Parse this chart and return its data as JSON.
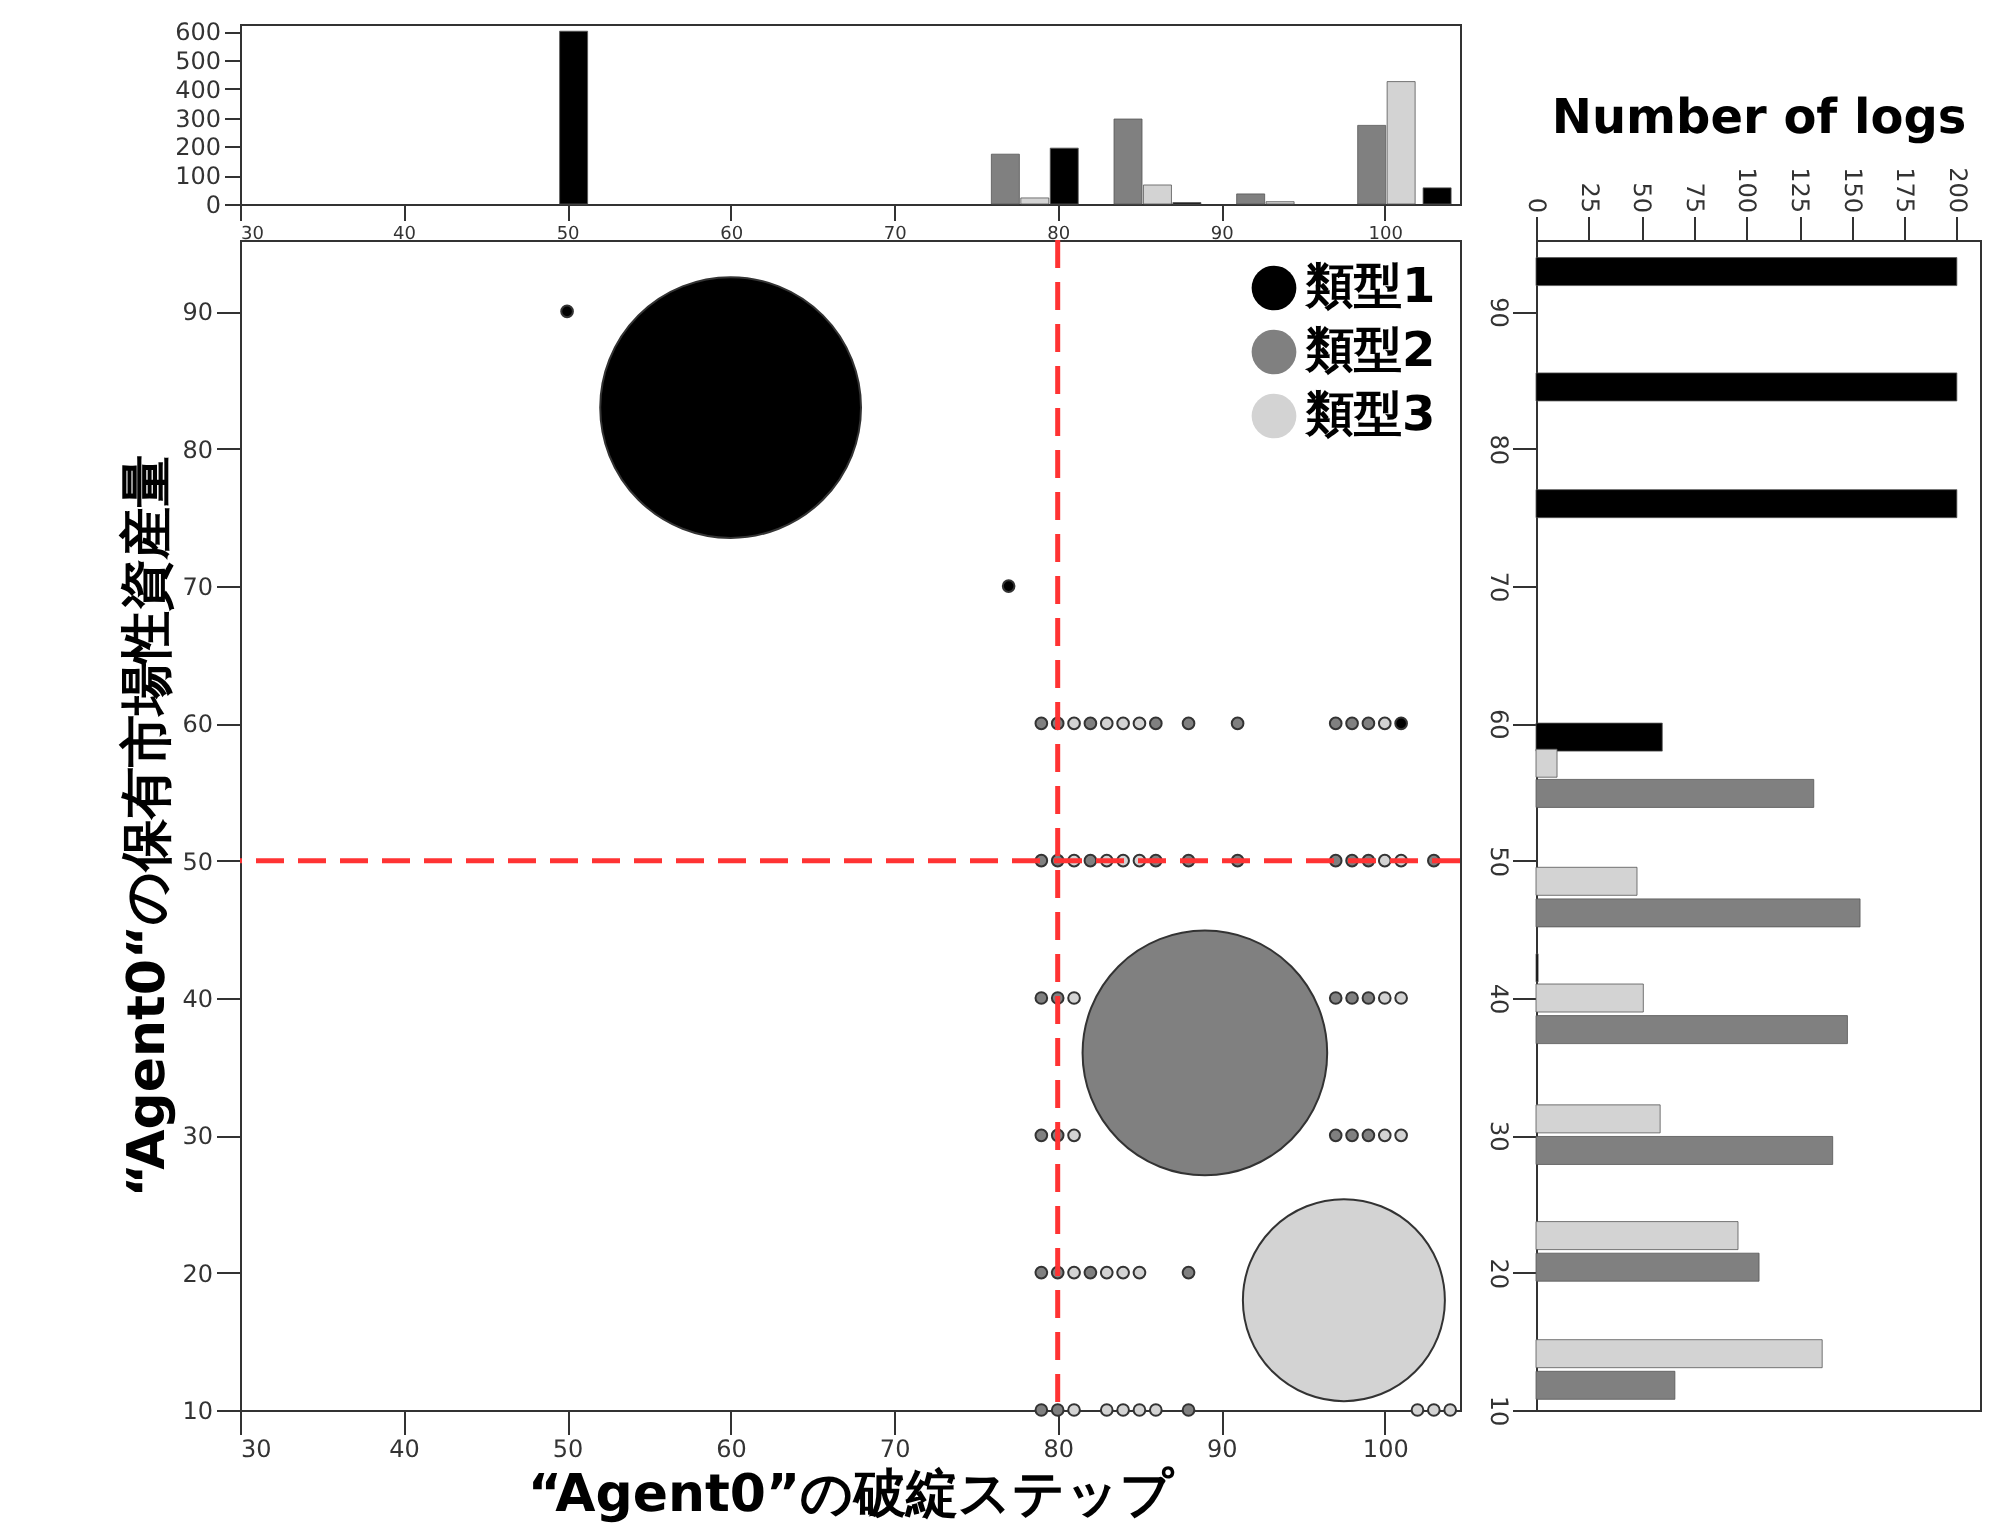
{
  "chart_data": [
    {
      "type": "bar",
      "xlim": [
        30,
        104.6
      ],
      "xticks": [
        30,
        40,
        50,
        60,
        70,
        80,
        90,
        100
      ],
      "ylim": [
        0,
        625
      ],
      "yticks": [
        0,
        100,
        200,
        300,
        400,
        500,
        600
      ],
      "series": [
        {
          "color": "#000000",
          "x": [
            50.4,
            80.4,
            87.9,
            103.2
          ],
          "values": [
            600,
            194,
            5,
            56
          ]
        },
        {
          "color": "#808080",
          "x": [
            76.8,
            84.3,
            91.8,
            99.2
          ],
          "values": [
            173,
            295,
            35,
            273
          ]
        },
        {
          "color": "#d3d3d3",
          "x": [
            78.6,
            86.1,
            93.6,
            101.0
          ],
          "values": [
            21,
            66,
            8,
            425
          ]
        }
      ]
    },
    {
      "type": "bubble",
      "xlabel": "“Agent0”の破綻ステップ",
      "ylabel": "“Agent0“の保有市場性資産量",
      "legend": "top right",
      "xlim": [
        30,
        104.6
      ],
      "xticks": [
        30,
        40,
        50,
        60,
        70,
        80,
        90,
        100
      ],
      "ylim": [
        10,
        95.2
      ],
      "yticks": [
        10,
        20,
        30,
        40,
        50,
        60,
        70,
        80,
        90
      ],
      "ref_lines": [
        {
          "axis": "x",
          "value": 80,
          "color": "#ff3333",
          "line_style": "dashed"
        },
        {
          "axis": "y",
          "value": 50,
          "color": "#ff3333",
          "line_style": "dashed"
        }
      ],
      "series": [
        {
          "name": "類型1",
          "color": "#000000",
          "x": [
            60,
            50,
            77,
            101
          ],
          "values": [
            83,
            90,
            70,
            60
          ],
          "sizes": [
            1,
            0.002,
            0.002,
            0.002
          ]
        },
        {
          "name": "類型2",
          "color": "#808080",
          "x": [
            89,
            79,
            80,
            82,
            86,
            88,
            91,
            97,
            98,
            99,
            79,
            80,
            82,
            86,
            88,
            91,
            97,
            98,
            99,
            103,
            79,
            80,
            97,
            98,
            99,
            79,
            80,
            97,
            98,
            99,
            79,
            80,
            82,
            88,
            79,
            80,
            88
          ],
          "values": [
            36,
            60,
            60,
            60,
            60,
            60,
            60,
            60,
            60,
            60,
            50,
            50,
            50,
            50,
            50,
            50,
            50,
            50,
            50,
            50,
            40,
            40,
            40,
            40,
            40,
            30,
            30,
            30,
            30,
            30,
            20,
            20,
            20,
            20,
            10,
            10,
            10
          ],
          "sizes": [
            0.88,
            0.002,
            0.002,
            0.002,
            0.002,
            0.002,
            0.002,
            0.002,
            0.002,
            0.002,
            0.002,
            0.002,
            0.002,
            0.002,
            0.002,
            0.002,
            0.002,
            0.002,
            0.002,
            0.002,
            0.002,
            0.002,
            0.002,
            0.002,
            0.002,
            0.002,
            0.002,
            0.002,
            0.002,
            0.002,
            0.002,
            0.002,
            0.002,
            0.002,
            0.002,
            0.002,
            0.002
          ]
        },
        {
          "name": "類型3",
          "color": "#d3d3d3",
          "x": [
            97.5,
            81,
            83,
            84,
            85,
            100,
            81,
            83,
            84,
            85,
            100,
            101,
            81,
            100,
            101,
            81,
            100,
            101,
            81,
            83,
            84,
            85,
            81,
            83,
            84,
            85,
            86,
            102,
            103,
            104
          ],
          "values": [
            18,
            60,
            60,
            60,
            60,
            60,
            50,
            50,
            50,
            50,
            50,
            50,
            40,
            40,
            40,
            30,
            30,
            30,
            20,
            20,
            20,
            20,
            10,
            10,
            10,
            10,
            10,
            10,
            10,
            10
          ],
          "sizes": [
            0.6,
            0.002,
            0.002,
            0.002,
            0.002,
            0.002,
            0.002,
            0.002,
            0.002,
            0.002,
            0.002,
            0.002,
            0.002,
            0.002,
            0.002,
            0.002,
            0.002,
            0.002,
            0.002,
            0.002,
            0.002,
            0.002,
            0.002,
            0.002,
            0.002,
            0.002,
            0.002,
            0.002,
            0.002,
            0.002
          ]
        }
      ]
    },
    {
      "type": "bar",
      "orientation": "horizontal",
      "xlabel": "Number of logs",
      "xlim": [
        0,
        211
      ],
      "xticks": [
        0,
        25,
        50,
        75,
        100,
        125,
        150,
        175,
        200
      ],
      "ylim": [
        10,
        95.2
      ],
      "yticks": [
        10,
        20,
        30,
        40,
        50,
        60,
        70,
        80,
        90
      ],
      "series": [
        {
          "color": "#000000",
          "x": [
            92.9,
            84.5,
            76,
            59,
            42.2
          ],
          "values": [
            200,
            200,
            200,
            60,
            1
          ]
        },
        {
          "color": "#808080",
          "x": [
            54.9,
            46.2,
            37.7,
            28.9,
            20.4,
            11.8
          ],
          "values": [
            132,
            154,
            148,
            141,
            106,
            66
          ]
        },
        {
          "color": "#d3d3d3",
          "x": [
            57.1,
            48.5,
            40,
            31.2,
            22.7,
            14.1
          ],
          "values": [
            10,
            48,
            51,
            59,
            96,
            136
          ]
        }
      ]
    }
  ]
}
